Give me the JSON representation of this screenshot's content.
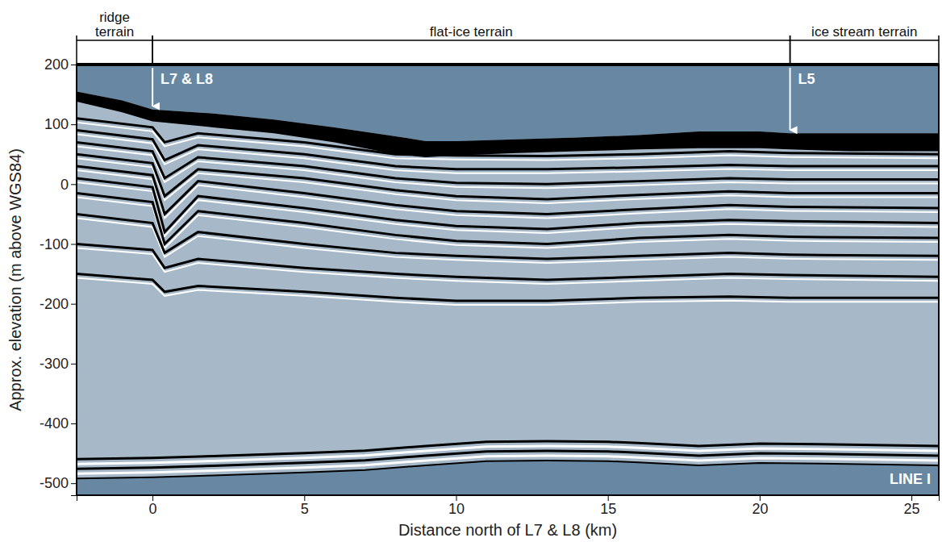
{
  "chart_data": {
    "type": "profile",
    "xlabel": "Distance north of L7 & L8 (km)",
    "ylabel": "Approx. elevation (m above WGS84)",
    "xlim": [
      -2.5,
      25.9
    ],
    "ylim": [
      -520,
      200
    ],
    "xticks": [
      0,
      5,
      10,
      15,
      20,
      25
    ],
    "yticks": [
      200,
      100,
      0,
      -100,
      -200,
      -300,
      -400,
      -500
    ],
    "terrains": [
      {
        "label": "ridge terrain",
        "start": -2.5,
        "end": 0
      },
      {
        "label": "flat-ice terrain",
        "start": 0,
        "end": 21
      },
      {
        "label": "ice stream terrain",
        "start": 21,
        "end": 25.9
      }
    ],
    "markers": [
      {
        "label": "L7 & L8",
        "x": 0
      },
      {
        "label": "L5",
        "x": 21
      }
    ],
    "line_label": "LINE I",
    "surface": {
      "x": [
        -2.5,
        -1,
        0,
        2,
        4,
        6,
        8,
        9,
        10,
        12,
        14,
        16,
        18,
        20,
        21,
        23,
        25.9
      ],
      "top": [
        155,
        140,
        125,
        118,
        108,
        95,
        80,
        72,
        72,
        75,
        78,
        82,
        88,
        88,
        85,
        85,
        85
      ],
      "base": [
        138,
        120,
        105,
        95,
        85,
        70,
        50,
        45,
        48,
        52,
        55,
        58,
        60,
        60,
        58,
        55,
        55
      ]
    },
    "layers": [
      {
        "x": [
          -2.5,
          0,
          0.4,
          1.5,
          5,
          8,
          10,
          13,
          16,
          19,
          21,
          25.9
        ],
        "values": [
          110,
          95,
          70,
          85,
          70,
          50,
          48,
          47,
          50,
          55,
          52,
          50
        ]
      },
      {
        "x": [
          -2.5,
          0,
          0.4,
          1.5,
          5,
          8,
          10,
          13,
          16,
          19,
          21,
          25.9
        ],
        "values": [
          90,
          75,
          40,
          65,
          50,
          30,
          25,
          25,
          28,
          32,
          30,
          30
        ]
      },
      {
        "x": [
          -2.5,
          0,
          0.4,
          1.5,
          5,
          8,
          10,
          13,
          16,
          19,
          21,
          25.9
        ],
        "values": [
          70,
          55,
          10,
          45,
          30,
          10,
          2,
          0,
          5,
          10,
          8,
          8
        ]
      },
      {
        "x": [
          -2.5,
          0,
          0.4,
          1.5,
          5,
          8,
          10,
          13,
          16,
          19,
          21,
          25.9
        ],
        "values": [
          50,
          35,
          -20,
          25,
          10,
          -10,
          -20,
          -25,
          -18,
          -12,
          -15,
          -15
        ]
      },
      {
        "x": [
          -2.5,
          0,
          0.4,
          1.5,
          5,
          8,
          10,
          13,
          16,
          19,
          21,
          25.9
        ],
        "values": [
          30,
          15,
          -50,
          5,
          -15,
          -35,
          -45,
          -50,
          -42,
          -35,
          -38,
          -40
        ]
      },
      {
        "x": [
          -2.5,
          0,
          0.4,
          1.5,
          5,
          8,
          10,
          13,
          16,
          19,
          21,
          25.9
        ],
        "values": [
          10,
          -5,
          -80,
          -20,
          -40,
          -60,
          -70,
          -75,
          -65,
          -60,
          -62,
          -65
        ]
      },
      {
        "x": [
          -2.5,
          0,
          0.4,
          1.5,
          5,
          8,
          10,
          13,
          16,
          19,
          21,
          25.9
        ],
        "values": [
          -15,
          -30,
          -100,
          -45,
          -65,
          -85,
          -95,
          -100,
          -90,
          -85,
          -88,
          -90
        ]
      },
      {
        "x": [
          -2.5,
          0,
          0.4,
          1.5,
          5,
          8,
          10,
          13,
          16,
          19,
          21,
          25.9
        ],
        "values": [
          -50,
          -65,
          -115,
          -80,
          -100,
          -115,
          -120,
          -125,
          -120,
          -115,
          -118,
          -120
        ]
      },
      {
        "x": [
          -2.5,
          0,
          0.4,
          1.5,
          5,
          8,
          10,
          13,
          16,
          19,
          21,
          25.9
        ],
        "values": [
          -100,
          -110,
          -140,
          -125,
          -140,
          -150,
          -155,
          -160,
          -155,
          -150,
          -152,
          -155
        ]
      },
      {
        "x": [
          -2.5,
          0,
          0.4,
          1.5,
          5,
          8,
          10,
          13,
          16,
          19,
          21,
          25.9
        ],
        "values": [
          -150,
          -160,
          -180,
          -170,
          -180,
          -190,
          -195,
          -195,
          -190,
          -188,
          -190,
          -190
        ]
      }
    ],
    "bed": {
      "x": [
        -2.5,
        0,
        2,
        5,
        7,
        9,
        11,
        13,
        15,
        16,
        18,
        20,
        22,
        25.9
      ],
      "values": [
        -492,
        -490,
        -487,
        -482,
        -478,
        -470,
        -463,
        -462,
        -463,
        -465,
        -470,
        -466,
        -467,
        -470
      ]
    }
  }
}
